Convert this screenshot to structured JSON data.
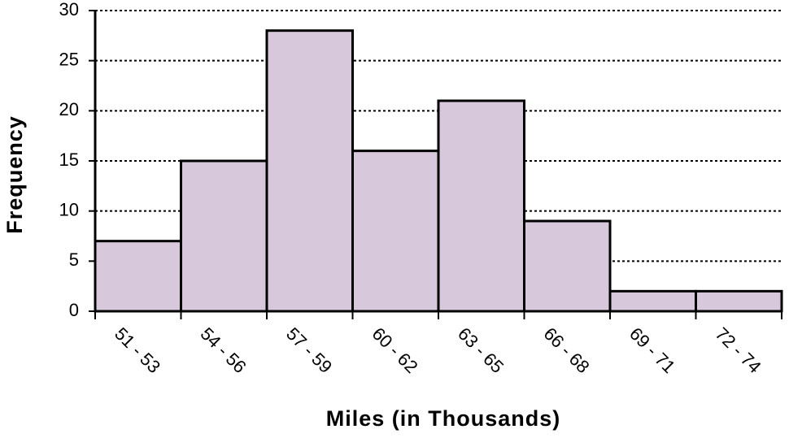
{
  "chart_data": {
    "type": "bar",
    "x_label": "Miles (in Thousands)",
    "y_label": "Frequency",
    "categories": [
      "51 - 53",
      "54 - 56",
      "57 - 59",
      "60 - 62",
      "63 - 65",
      "66 - 68",
      "69 - 71",
      "72 - 74"
    ],
    "values": [
      7,
      15,
      28,
      16,
      21,
      9,
      2,
      2
    ],
    "color": "#d8c8dc",
    "ylim": [
      0,
      30
    ],
    "yticks": [
      0,
      5,
      10,
      15,
      20,
      25,
      30
    ],
    "grid": true
  }
}
